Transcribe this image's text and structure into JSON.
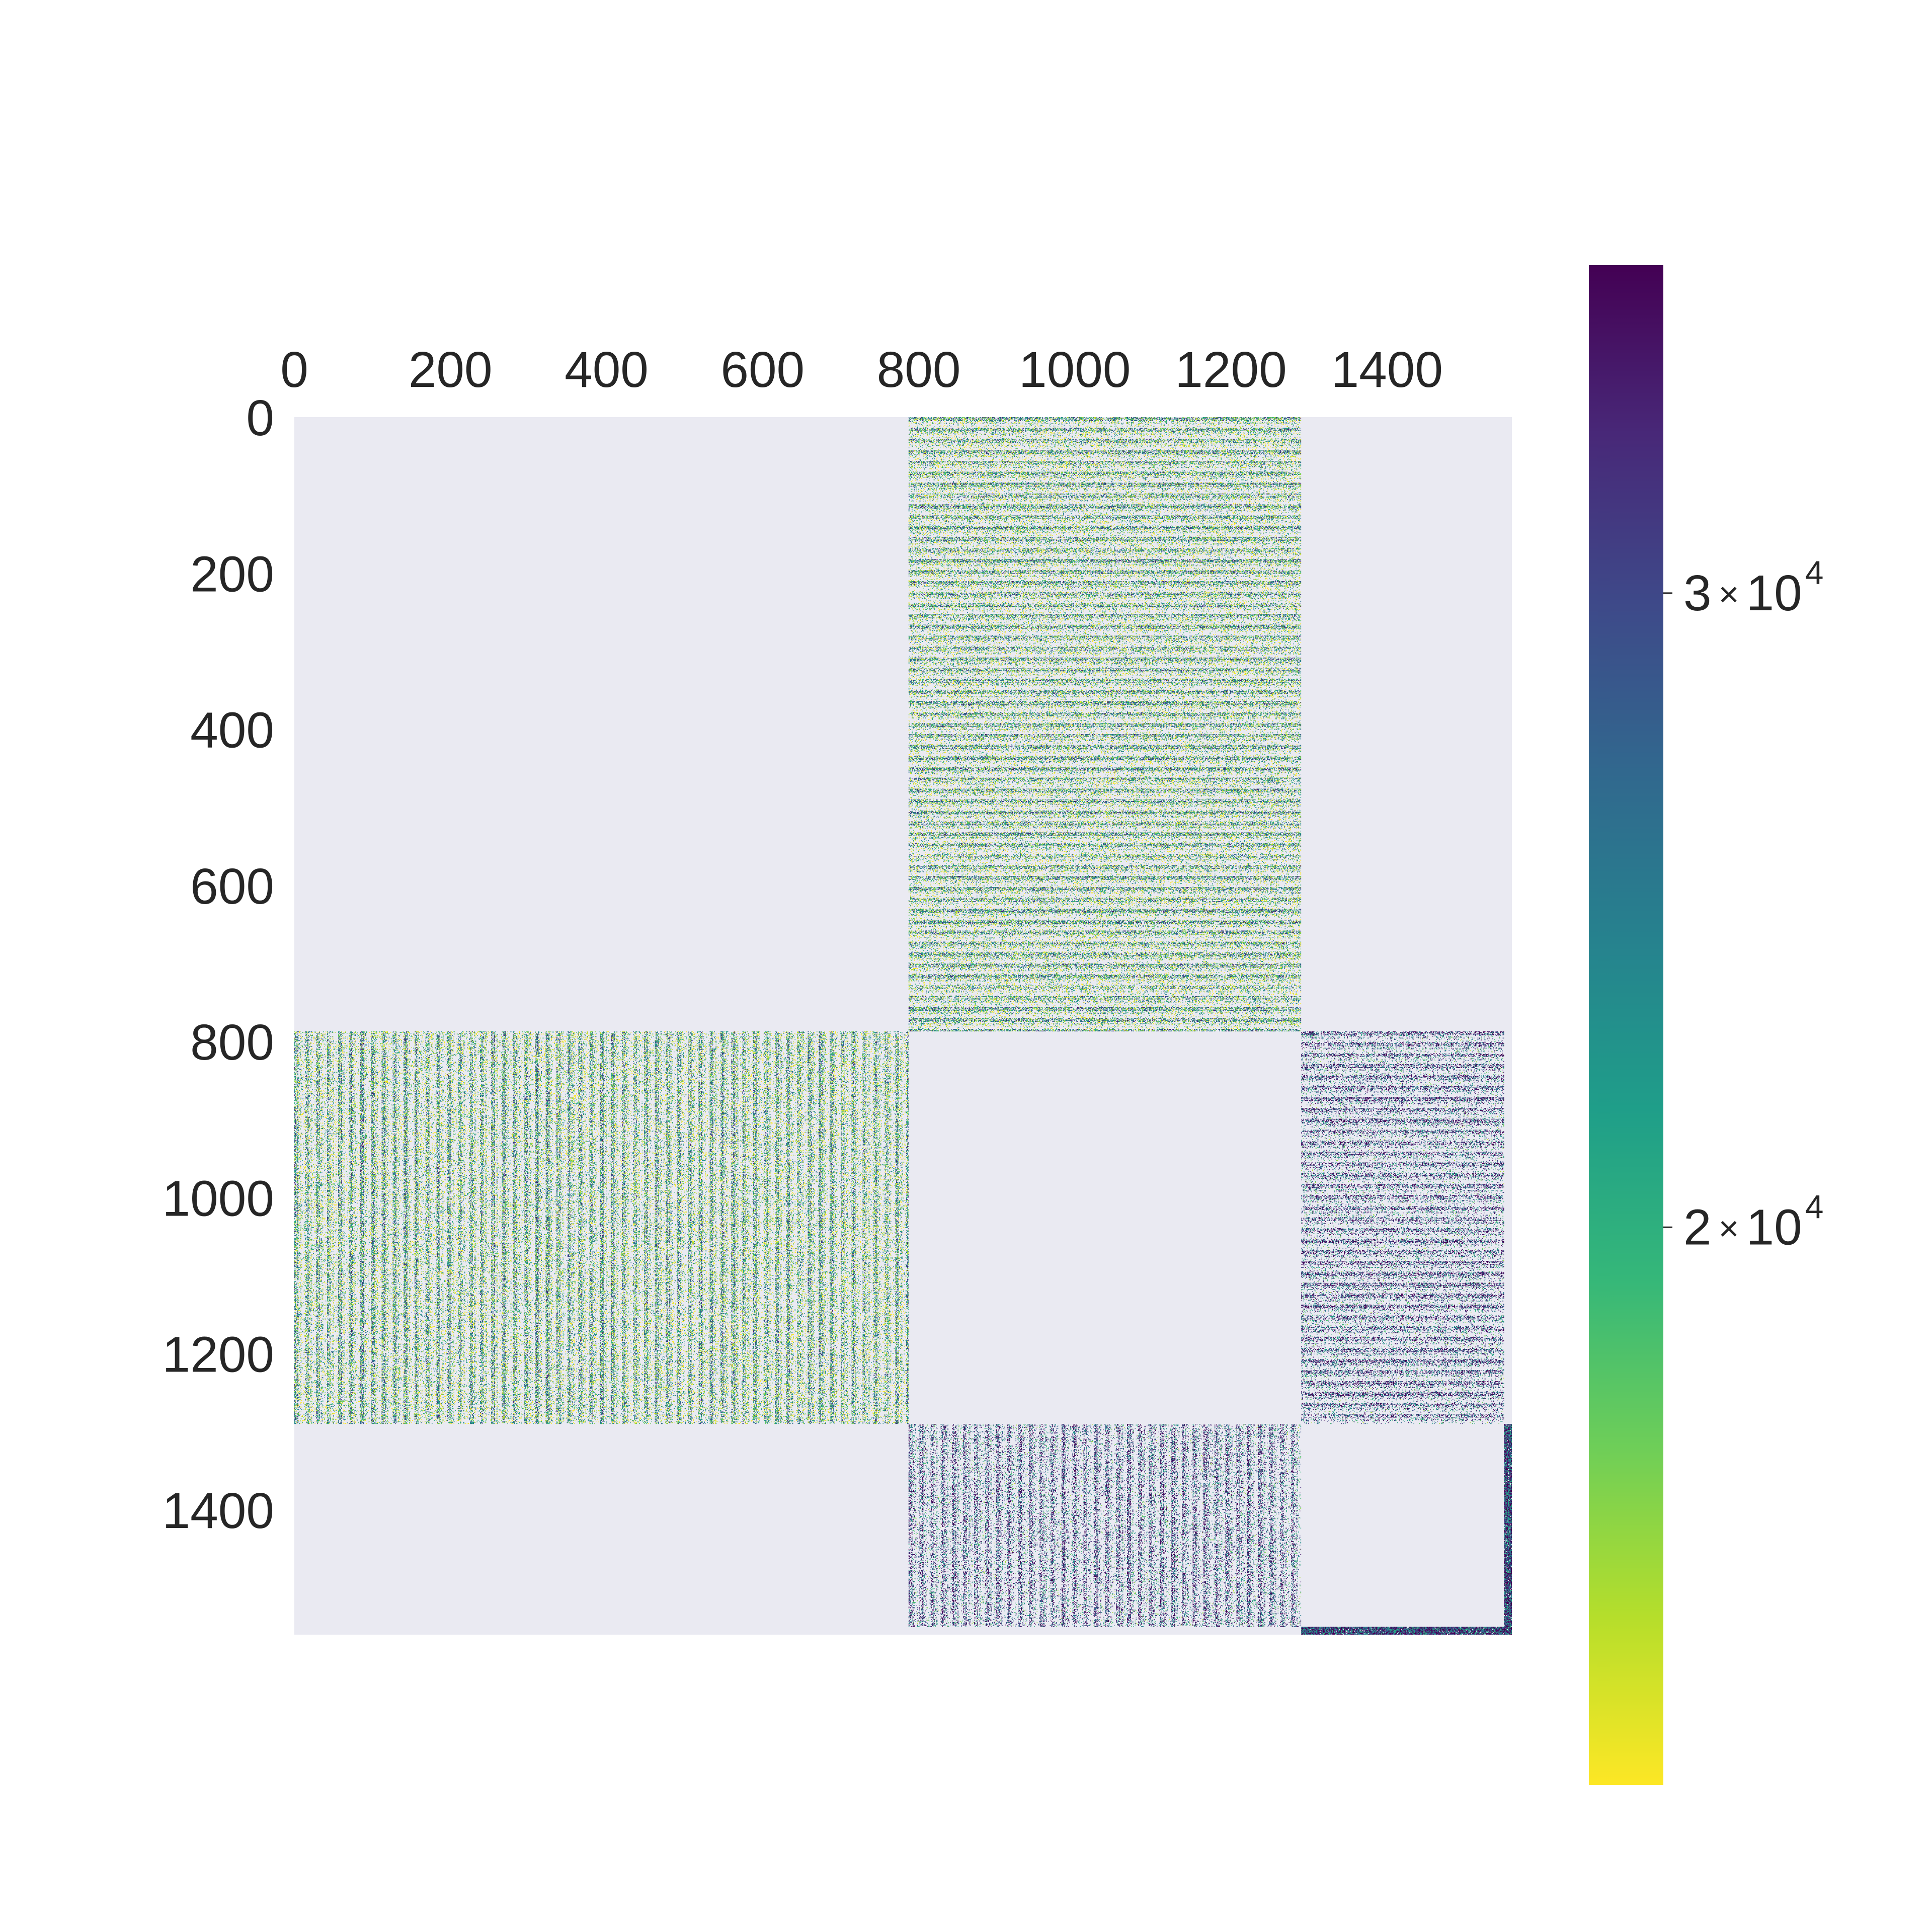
{
  "chart_data": {
    "type": "heatmap",
    "title": "",
    "xlabel": "",
    "ylabel": "",
    "matrix_size": 1560,
    "xlim": [
      0,
      1560
    ],
    "ylim": [
      1560,
      0
    ],
    "x_axis_position": "top",
    "x_ticks": [
      0,
      200,
      400,
      600,
      800,
      1000,
      1200,
      1400
    ],
    "x_tick_labels": [
      "0",
      "200",
      "400",
      "600",
      "800",
      "1000",
      "1200",
      "1400"
    ],
    "y_ticks": [
      0,
      200,
      400,
      600,
      800,
      1000,
      1200,
      1400
    ],
    "y_tick_labels": [
      "0",
      "200",
      "400",
      "600",
      "800",
      "1000",
      "1200",
      "1400"
    ],
    "background_color": "#eaeaf2",
    "grid": false,
    "colormap": "viridis_r",
    "color_scale": "log",
    "color_range": [
      14000,
      37000
    ],
    "colorbar": {
      "location": "right",
      "ticks": [
        30000,
        20000
      ],
      "tick_labels": [
        {
          "mantissa": "3",
          "times": "×",
          "base": "10",
          "exponent": "4"
        },
        {
          "mantissa": "2",
          "times": "×",
          "base": "10",
          "exponent": "4"
        }
      ]
    },
    "colors": {
      "viridis_r_stops": [
        "#fde725",
        "#b5de2b",
        "#6ece58",
        "#35b779",
        "#1f9e89",
        "#26828e",
        "#31688e",
        "#3e4989",
        "#482878",
        "#440154"
      ]
    },
    "blocks": [
      {
        "rows": [
          0,
          787
        ],
        "cols": [
          787,
          1290
        ],
        "pattern": "horizontal-bands",
        "value_mean": 18000,
        "density": 0.55
      },
      {
        "rows": [
          787,
          1290
        ],
        "cols": [
          0,
          787
        ],
        "pattern": "vertical-bands",
        "value_mean": 18000,
        "density": 0.55
      },
      {
        "rows": [
          787,
          1290
        ],
        "cols": [
          1290,
          1550
        ],
        "pattern": "horizontal-bands",
        "value_mean": 26000,
        "density": 0.45
      },
      {
        "rows": [
          1290,
          1550
        ],
        "cols": [
          787,
          1290
        ],
        "pattern": "vertical-bands",
        "value_mean": 26000,
        "density": 0.45
      },
      {
        "rows": [
          1290,
          1550
        ],
        "cols": [
          1550,
          1560
        ],
        "pattern": "dense-edge",
        "value_mean": 36000,
        "density": 0.95
      },
      {
        "rows": [
          1550,
          1560
        ],
        "cols": [
          1290,
          1560
        ],
        "pattern": "dense-edge",
        "value_mean": 36000,
        "density": 0.95
      }
    ]
  }
}
